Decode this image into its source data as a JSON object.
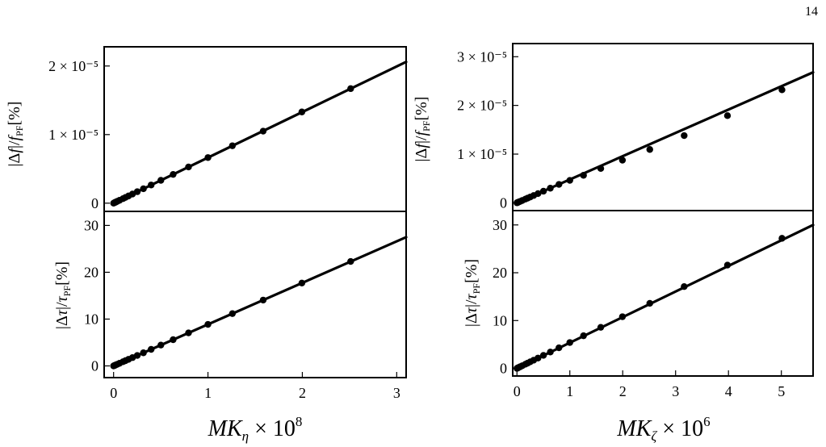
{
  "page_number": "14",
  "chart_data": [
    {
      "type": "line",
      "panel": "top-left",
      "x_scale": "MKη × 10^8",
      "ylabel": "|Δf|/f_PF[%]",
      "xlim": [
        -0.1,
        3.1
      ],
      "ylim": [
        -1.2e-06,
        2.28e-05
      ],
      "yticks": [
        {
          "v": 0,
          "t": "0"
        },
        {
          "v": 1e-05,
          "t": "1 × 10⁻⁵"
        },
        {
          "v": 2e-05,
          "t": "2 × 10⁻⁵"
        }
      ],
      "xticks": [],
      "line": {
        "x": [
          0,
          3.1
        ],
        "y": [
          0,
          2.06e-05
        ]
      },
      "points": {
        "x": [
          0,
          0.01,
          0.016,
          0.025,
          0.04,
          0.063,
          0.1,
          0.126,
          0.158,
          0.2,
          0.251,
          0.316,
          0.398,
          0.501,
          0.631,
          0.794,
          1.0,
          1.259,
          1.585,
          1.995,
          2.512
        ],
        "y": [
          0,
          7e-08,
          1.1e-07,
          1.7e-07,
          2.7e-07,
          4.2e-07,
          6.6e-07,
          8.4e-07,
          1.05e-06,
          1.33e-06,
          1.67e-06,
          2.1e-06,
          2.65e-06,
          3.33e-06,
          4.19e-06,
          5.28e-06,
          6.65e-06,
          8.37e-06,
          1.05e-05,
          1.33e-05,
          1.67e-05
        ]
      }
    },
    {
      "type": "line",
      "panel": "bottom-left",
      "ylabel": "|Δτ|/τ_PF[%]",
      "xlabel": "MKη × 10^8",
      "xlim": [
        -0.1,
        3.1
      ],
      "ylim": [
        -2.5,
        33
      ],
      "yticks": [
        {
          "v": 0,
          "t": "0"
        },
        {
          "v": 10,
          "t": "10"
        },
        {
          "v": 20,
          "t": "20"
        },
        {
          "v": 30,
          "t": "30"
        }
      ],
      "xticks": [
        {
          "v": 0,
          "t": "0"
        },
        {
          "v": 1,
          "t": "1"
        },
        {
          "v": 2,
          "t": "2"
        },
        {
          "v": 3,
          "t": "3"
        }
      ],
      "line": {
        "x": [
          0,
          3.1
        ],
        "y": [
          0,
          27.5
        ]
      },
      "points": {
        "x": [
          0,
          0.01,
          0.016,
          0.025,
          0.04,
          0.063,
          0.1,
          0.126,
          0.158,
          0.2,
          0.251,
          0.316,
          0.398,
          0.501,
          0.631,
          0.794,
          1.0,
          1.259,
          1.585,
          1.995,
          2.512
        ],
        "y": [
          0,
          0.09,
          0.14,
          0.22,
          0.35,
          0.56,
          0.89,
          1.12,
          1.4,
          1.77,
          2.23,
          2.8,
          3.53,
          4.45,
          5.6,
          7.05,
          8.87,
          11.17,
          14.06,
          17.7,
          22.3
        ]
      }
    },
    {
      "type": "line",
      "panel": "top-right",
      "ylabel": "|Δf|/f_PF[%]",
      "xlim": [
        -0.08,
        5.6
      ],
      "ylim": [
        -1.6e-06,
        3.27e-05
      ],
      "yticks": [
        {
          "v": 0,
          "t": "0"
        },
        {
          "v": 1e-05,
          "t": "1 × 10⁻⁵"
        },
        {
          "v": 2e-05,
          "t": "2 × 10⁻⁵"
        },
        {
          "v": 3e-05,
          "t": "3 × 10⁻⁵"
        }
      ],
      "xticks": [],
      "line": {
        "x": [
          0,
          5.6
        ],
        "y": [
          0,
          2.68e-05
        ]
      },
      "points": {
        "x": [
          0,
          0.01,
          0.02,
          0.04,
          0.063,
          0.1,
          0.158,
          0.2,
          0.251,
          0.316,
          0.398,
          0.501,
          0.631,
          0.794,
          1.0,
          1.259,
          1.585,
          1.995,
          2.512,
          3.162,
          3.981,
          5.012
        ],
        "y": [
          0,
          5e-08,
          1e-07,
          1.9e-07,
          3e-07,
          4.7e-07,
          7.5e-07,
          9.5e-07,
          1.19e-06,
          1.5e-06,
          1.89e-06,
          2.38e-06,
          3e-06,
          3.77e-06,
          4.6e-06,
          5.65e-06,
          7.05e-06,
          8.75e-06,
          1.095e-05,
          1.38e-05,
          1.79e-05,
          2.32e-05
        ]
      }
    },
    {
      "type": "line",
      "panel": "bottom-right",
      "ylabel": "|Δτ|/τ_PF[%]",
      "xlabel": "MKζ × 10^6",
      "xlim": [
        -0.08,
        5.6
      ],
      "ylim": [
        -1.6,
        33
      ],
      "yticks": [
        {
          "v": 0,
          "t": "0"
        },
        {
          "v": 10,
          "t": "10"
        },
        {
          "v": 20,
          "t": "20"
        },
        {
          "v": 30,
          "t": "30"
        }
      ],
      "xticks": [
        {
          "v": 0,
          "t": "0"
        },
        {
          "v": 1,
          "t": "1"
        },
        {
          "v": 2,
          "t": "2"
        },
        {
          "v": 3,
          "t": "3"
        },
        {
          "v": 4,
          "t": "4"
        },
        {
          "v": 5,
          "t": "5"
        }
      ],
      "line": {
        "x": [
          0,
          5.6
        ],
        "y": [
          0,
          30
        ]
      },
      "points": {
        "x": [
          0,
          0.01,
          0.02,
          0.04,
          0.063,
          0.1,
          0.158,
          0.2,
          0.251,
          0.316,
          0.398,
          0.501,
          0.631,
          0.794,
          1.0,
          1.259,
          1.585,
          1.995,
          2.512,
          3.162,
          3.981,
          5.012
        ],
        "y": [
          0,
          0.05,
          0.11,
          0.22,
          0.34,
          0.54,
          0.86,
          1.08,
          1.36,
          1.71,
          2.15,
          2.71,
          3.41,
          4.3,
          5.4,
          6.82,
          8.58,
          10.8,
          13.6,
          17.1,
          21.6,
          27.2
        ]
      }
    }
  ]
}
